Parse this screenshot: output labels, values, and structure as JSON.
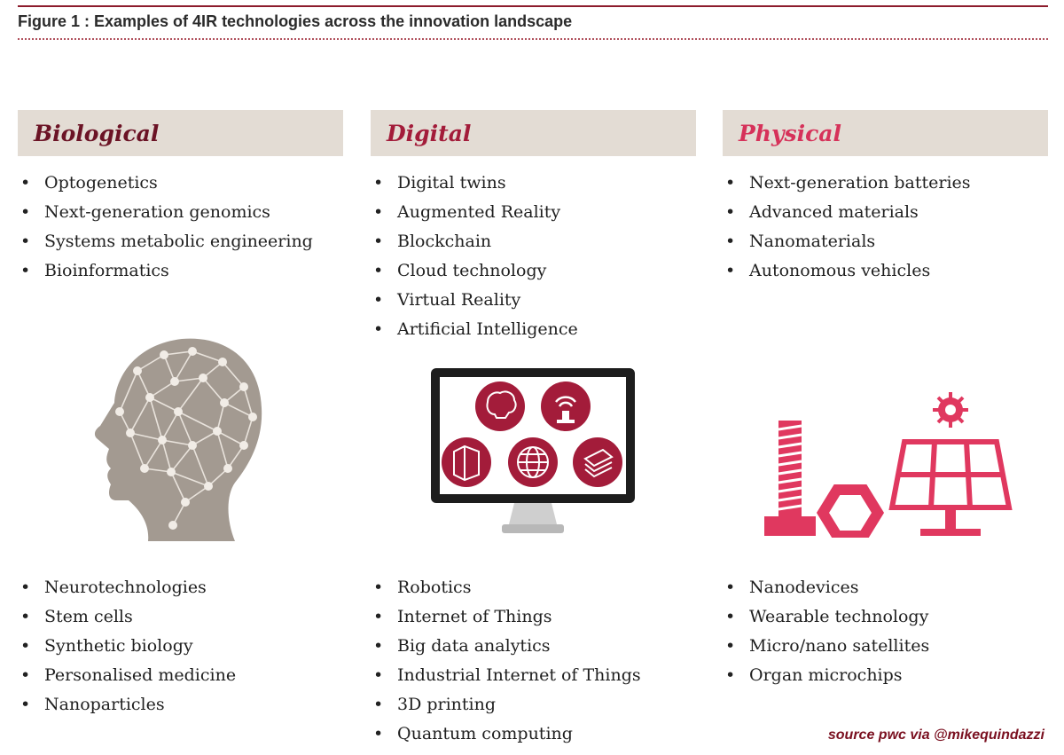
{
  "figure_title": "Figure 1 : Examples of 4IR technologies across the innovation landscape",
  "columns": [
    {
      "title": "Biological",
      "top_items": [
        "Optogenetics",
        "Next-generation genomics",
        "Systems metabolic engineering",
        "Bioinformatics"
      ],
      "bottom_items": [
        "Neurotechnologies",
        "Stem cells",
        "Synthetic biology",
        "Personalised medicine",
        "Nanoparticles"
      ],
      "illustration": "network-head-icon"
    },
    {
      "title": "Digital",
      "top_items": [
        "Digital twins",
        "Augmented Reality",
        "Blockchain",
        "Cloud technology",
        "Virtual Reality",
        "Artificial Intelligence"
      ],
      "bottom_items": [
        "Robotics",
        "Internet of Things",
        "Big data analytics",
        "Industrial Internet of Things",
        "3D printing",
        "Quantum computing"
      ],
      "illustration": "monitor-icon"
    },
    {
      "title": "Physical",
      "top_items": [
        "Next-generation batteries",
        "Advanced materials",
        "Nanomaterials",
        "Autonomous vehicles"
      ],
      "bottom_items": [
        "Nanodevices",
        "Wearable technology",
        "Micro/nano satellites",
        "Organ microchips"
      ],
      "illustration": "solar-panel-bolt-nut-icon"
    }
  ],
  "source": "source pwc via @mikequindazzi",
  "colors": {
    "biological": "#6b1325",
    "digital": "#a31c3a",
    "physical": "#d6325a",
    "header_bg": "#e3dcd4",
    "icon_gray": "#a39a91",
    "icon_pink": "#e0385f"
  }
}
